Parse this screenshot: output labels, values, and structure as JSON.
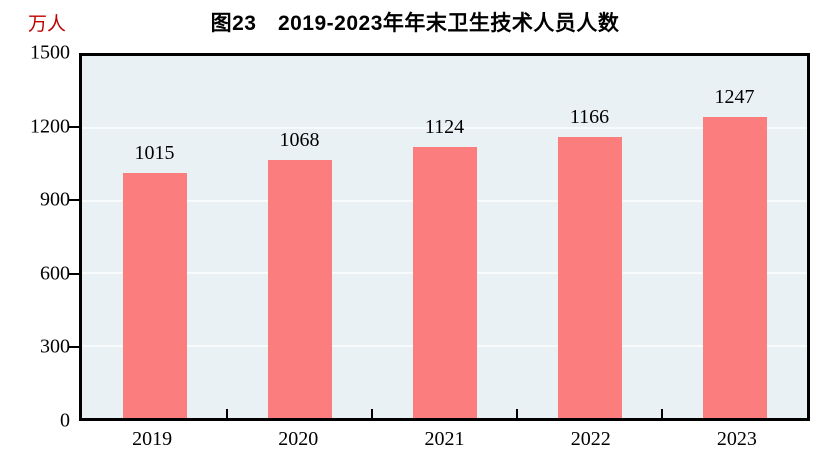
{
  "chart": {
    "title": "图23　2019-2023年年末卫生技术人员人数",
    "unit_label": "万人",
    "colors": {
      "bar": "#fc7d7d",
      "plot_background": "#eaf1f4",
      "gridline": "#f8fbfc",
      "axis": "#000000",
      "unit_label": "#c00000",
      "title": "#000000"
    }
  },
  "chart_data": {
    "type": "bar",
    "title": "图23　2019-2023年年末卫生技术人员人数",
    "categories": [
      "2019",
      "2020",
      "2021",
      "2022",
      "2023"
    ],
    "values": [
      1015,
      1068,
      1124,
      1166,
      1247
    ],
    "xlabel": "",
    "ylabel": "万人",
    "ylim": [
      0,
      1500
    ],
    "yticks": [
      0,
      300,
      600,
      900,
      1200,
      1500
    ],
    "grid": true,
    "legend": false,
    "data_labels": true,
    "legend_position": "none"
  }
}
